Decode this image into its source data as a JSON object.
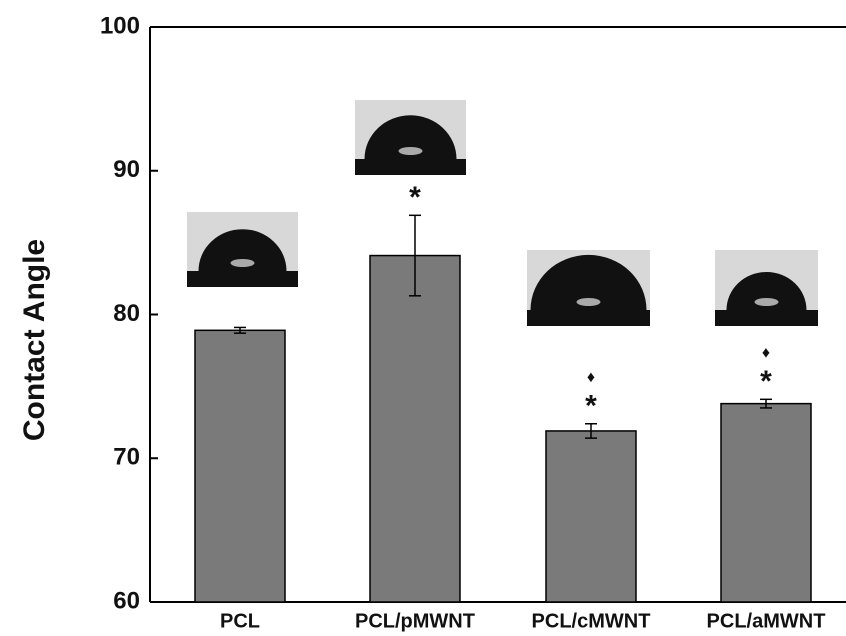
{
  "chart_data": {
    "type": "bar",
    "y_label": "Contact Angle",
    "categories": [
      "PCL",
      "PCL/pMWNT",
      "PCL/cMWNT",
      "PCL/aMWNT"
    ],
    "values": [
      78.9,
      84.1,
      71.9,
      73.8
    ],
    "errors": [
      0.2,
      2.8,
      0.5,
      0.3
    ],
    "significance": [
      null,
      [
        "*"
      ],
      [
        "♦",
        "*"
      ],
      [
        "♦",
        "*"
      ]
    ],
    "color": "#7a7a7a",
    "ylim": [
      60,
      100
    ],
    "yticks": [
      60,
      70,
      80,
      90,
      100
    ]
  }
}
